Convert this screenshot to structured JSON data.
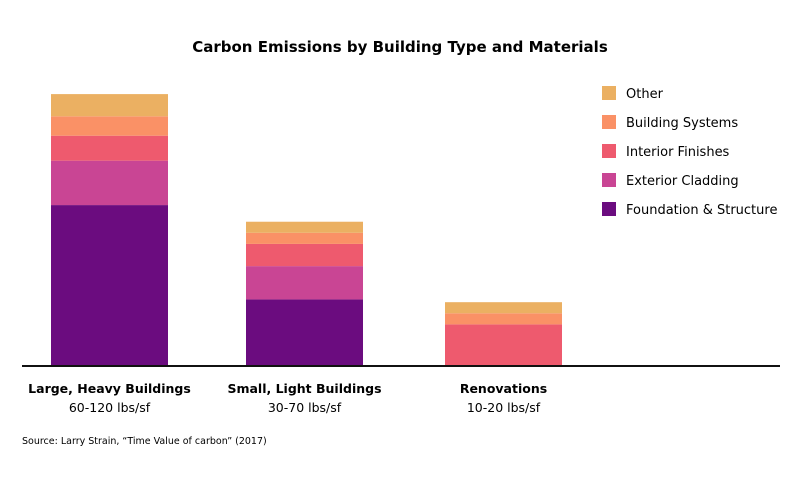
{
  "chart_data": {
    "type": "bar",
    "stacked": true,
    "title": "Carbon Emissions by Building Type and Materials",
    "categories": [
      "Large, Heavy Buildings",
      "Small, Light Buildings",
      "Renovations"
    ],
    "category_sublabels": [
      "60-120 lbs/sf",
      "30-70 lbs/sf",
      "10-20 lbs/sf"
    ],
    "series": [
      {
        "name": "Foundation & Structure",
        "color": "#6b0c7f",
        "values": [
          58,
          24,
          0
        ]
      },
      {
        "name": "Exterior Cladding",
        "color": "#c94594",
        "values": [
          16,
          12,
          0
        ]
      },
      {
        "name": "Interior Finishes",
        "color": "#ee5a6e",
        "values": [
          9,
          8,
          15
        ]
      },
      {
        "name": "Building Systems",
        "color": "#fa9166",
        "values": [
          7,
          4,
          4
        ]
      },
      {
        "name": "Other",
        "color": "#ebb062",
        "values": [
          8,
          4,
          4
        ]
      }
    ],
    "legend_order": [
      "Other",
      "Building Systems",
      "Interior Finishes",
      "Exterior Cladding",
      "Foundation & Structure"
    ],
    "legend_position": "top-right",
    "ylim": [
      0,
      100
    ],
    "grid": false,
    "y_axis_visible": false,
    "baseline_color": "#111111",
    "source": "Source: Larry Strain, “Time Value of carbon” (2017)"
  }
}
